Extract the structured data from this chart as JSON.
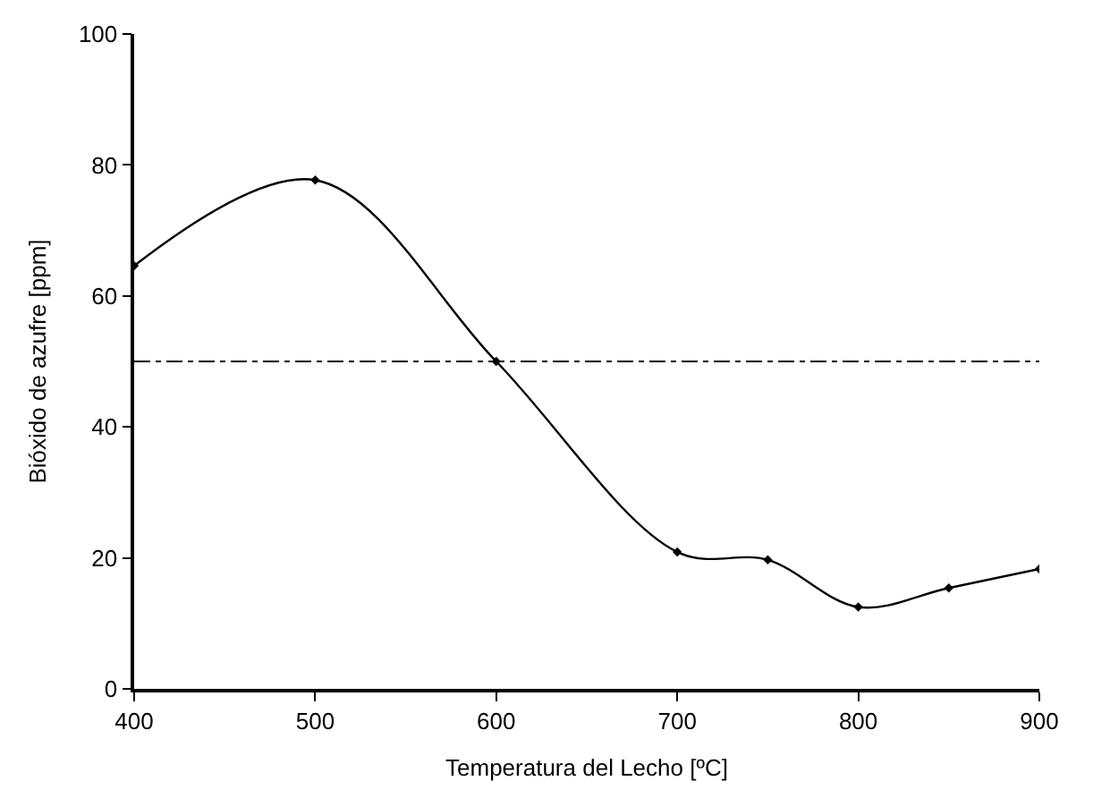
{
  "chart_data": {
    "type": "line",
    "xlabel": "Temperatura del Lecho [ºC]",
    "ylabel": "Bióxido de azufre [ppm]",
    "x": [
      400,
      500,
      600,
      700,
      750,
      800,
      850,
      900
    ],
    "series": [
      {
        "color": "#000000",
        "values": [
          64.6,
          77.7,
          50,
          20.9,
          19.7,
          12.5,
          15.4,
          18.3
        ]
      }
    ],
    "xlim": [
      400,
      900
    ],
    "xticks": [
      400,
      500,
      600,
      700,
      800,
      900
    ],
    "ylim": [
      0,
      100
    ],
    "yticks": [
      0,
      20,
      40,
      60,
      80,
      100
    ],
    "ref_lines": [
      {
        "axis": "y",
        "value": 50,
        "color": "#000000",
        "line_style": "dashdot"
      }
    ],
    "marker": "diamond",
    "line_style": "solid"
  }
}
